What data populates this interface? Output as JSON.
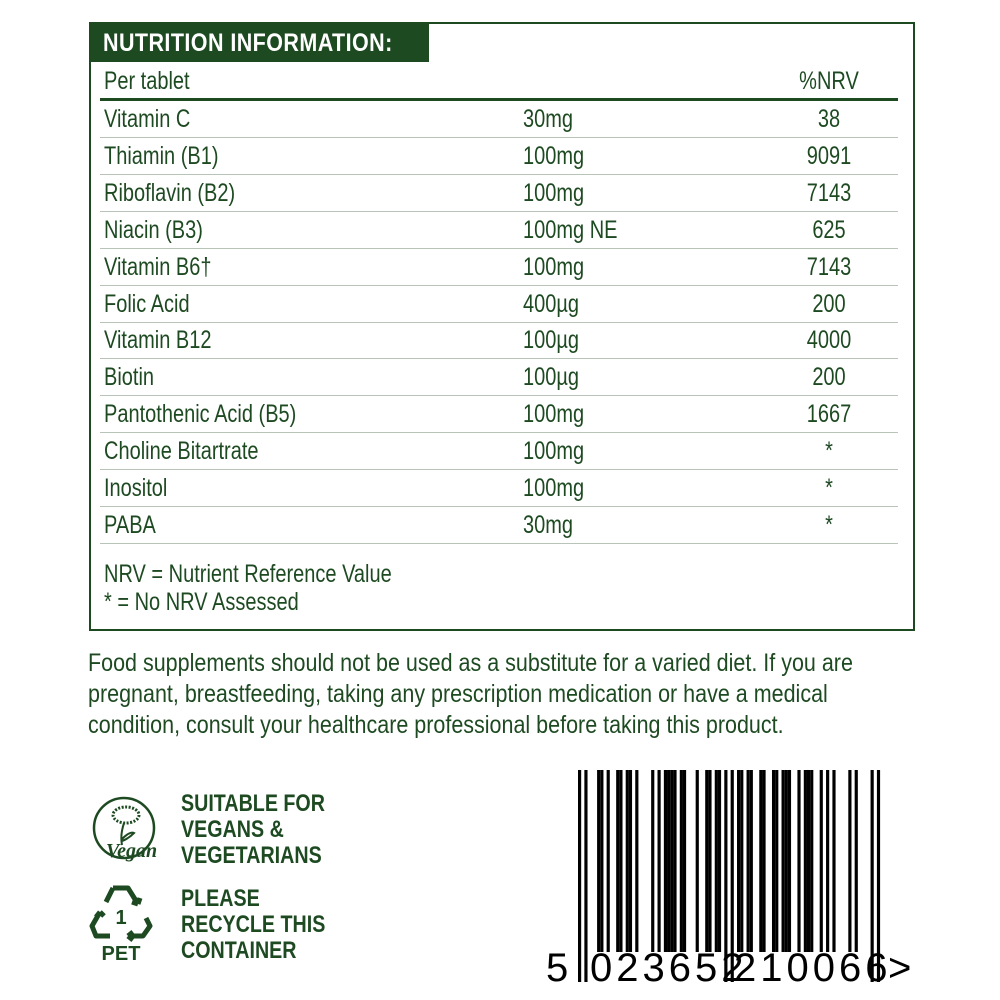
{
  "nutrition": {
    "title": "NUTRITION INFORMATION:",
    "header": {
      "per": "Per tablet",
      "nrv": "%NRV"
    },
    "rows": [
      {
        "name": "Vitamin C",
        "amount": "30mg",
        "nrv": "38"
      },
      {
        "name": "Thiamin (B1)",
        "amount": "100mg",
        "nrv": "9091"
      },
      {
        "name": "Riboflavin (B2)",
        "amount": "100mg",
        "nrv": "7143"
      },
      {
        "name": "Niacin (B3)",
        "amount": "100mg NE",
        "nrv": "625"
      },
      {
        "name": "Vitamin B6†",
        "amount": "100mg",
        "nrv": "7143"
      },
      {
        "name": "Folic Acid",
        "amount": "400µg",
        "nrv": "200"
      },
      {
        "name": "Vitamin B12",
        "amount": "100µg",
        "nrv": "4000"
      },
      {
        "name": "Biotin",
        "amount": "100µg",
        "nrv": "200"
      },
      {
        "name": "Pantothenic Acid (B5)",
        "amount": "100mg",
        "nrv": "1667"
      },
      {
        "name": "Choline Bitartrate",
        "amount": "100mg",
        "nrv": "*"
      },
      {
        "name": "Inositol",
        "amount": "100mg",
        "nrv": "*"
      },
      {
        "name": "PABA",
        "amount": "30mg",
        "nrv": "*"
      }
    ],
    "footnotes": [
      "NRV = Nutrient Reference Value",
      "* = No NRV Assessed"
    ]
  },
  "advisory": "Food supplements should not be used as a substitute for a varied diet. If you are pregnant, breastfeeding, taking any prescription medication or have a medical condition, consult your healthcare professional before taking this product.",
  "vegan": {
    "logo_text": "Vegan",
    "claim": "SUITABLE FOR\nVEGANS &\nVEGETARIANS"
  },
  "recycle": {
    "code": "1",
    "material": "PET",
    "claim": "PLEASE\nRECYCLE THIS\nCONTAINER"
  },
  "barcode": {
    "first": "5",
    "left": "023652",
    "right": "210066",
    "quiet_mark": ">"
  },
  "colors": {
    "brand_green": "#1e4a22"
  }
}
